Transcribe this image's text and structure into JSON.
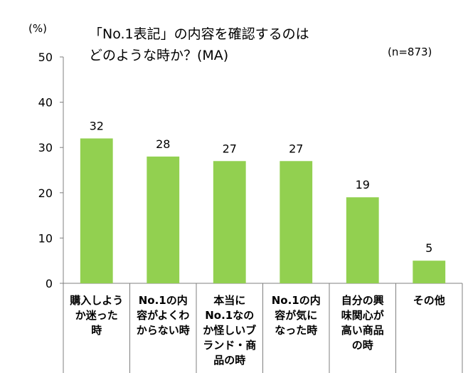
{
  "chart_data": {
    "type": "bar",
    "title_lines": [
      "「No.1表記」の内容を確認するのは",
      "どのような時か？(MA)"
    ],
    "ylabel": "(%)",
    "note": "(n=873)",
    "ylim": [
      0,
      50
    ],
    "yticks": [
      0,
      10,
      20,
      30,
      40,
      50
    ],
    "categories": [
      [
        "購入しよう",
        "か迷った",
        "時"
      ],
      [
        "No.1の内",
        "容がよくわ",
        "からない時"
      ],
      [
        "本当に",
        "No.1なの",
        "か怪しいブ",
        "ランド・商",
        "品の時"
      ],
      [
        "No.1の内",
        "容が気に",
        "なった時"
      ],
      [
        "自分の興",
        "味関心が",
        "高い商品",
        "の時"
      ],
      [
        "その他"
      ]
    ],
    "values": [
      32,
      28,
      27,
      27,
      19,
      5
    ],
    "bar_color": "#92D050",
    "grid": false
  }
}
